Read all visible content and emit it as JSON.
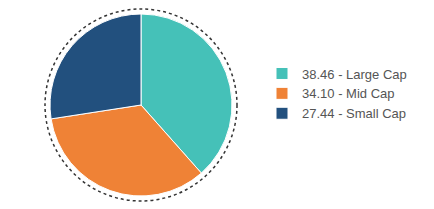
{
  "chart_data": {
    "type": "pie",
    "categories": [
      "38.46 - Large Cap",
      "34.10 - Mid Cap",
      "27.44 - Small Cap"
    ],
    "values": [
      38.46,
      34.1,
      27.44
    ],
    "colors": [
      "#45c1b8",
      "#ef8236",
      "#22507e"
    ],
    "legend": "right"
  }
}
